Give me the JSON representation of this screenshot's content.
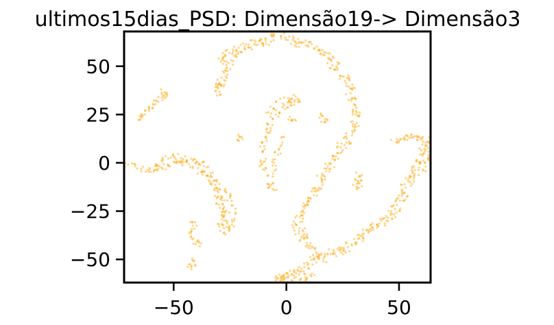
{
  "chart_data": {
    "type": "scatter",
    "title": "ultimos15dias_PSD: Dimensão19-> Dimensão3",
    "xlabel": "",
    "ylabel": "",
    "xlim": [
      -72,
      64
    ],
    "ylim": [
      -62,
      68
    ],
    "grid": false,
    "legend": "none",
    "x_ticks": [
      {
        "value": -50,
        "label": "−50"
      },
      {
        "value": 0,
        "label": "0"
      },
      {
        "value": 50,
        "label": "50"
      }
    ],
    "y_ticks": [
      {
        "value": 50,
        "label": "50"
      },
      {
        "value": 25,
        "label": "25"
      },
      {
        "value": 0,
        "label": "0"
      },
      {
        "value": -25,
        "label": "−25"
      },
      {
        "value": -50,
        "label": "−50"
      }
    ],
    "marker_color": "#FFA500",
    "series": [
      {
        "points": [
          [
            -71,
            -1
          ],
          [
            -68,
            -1
          ],
          [
            -65,
            -3
          ],
          [
            -62,
            -4
          ],
          [
            -60,
            -4
          ],
          [
            -57,
            -3
          ],
          [
            -55,
            -2
          ],
          [
            -52,
            -1
          ],
          [
            -50,
            0
          ],
          [
            -48,
            1
          ],
          [
            -45,
            0
          ],
          [
            -43,
            -1
          ],
          [
            -40,
            -2
          ],
          [
            -38,
            -4
          ],
          [
            -36,
            -6
          ],
          [
            -34,
            -8
          ],
          [
            -33,
            -10
          ],
          [
            -32,
            -12
          ],
          [
            -31,
            -15
          ],
          [
            -30,
            -18
          ],
          [
            -29,
            -21
          ],
          [
            -28,
            -24
          ],
          [
            -28,
            -27
          ],
          [
            -27,
            -30
          ],
          [
            -27,
            -33
          ],
          [
            -59,
            -2
          ],
          [
            -56,
            0
          ],
          [
            -54,
            2
          ],
          [
            -51,
            3
          ],
          [
            -49,
            3
          ],
          [
            -46,
            2
          ],
          [
            -44,
            2
          ],
          [
            -42,
            1
          ],
          [
            -40,
            0
          ],
          [
            -38,
            -1
          ],
          [
            -36,
            -3
          ],
          [
            -34,
            -6
          ],
          [
            -32,
            -9
          ],
          [
            -31,
            -12
          ],
          [
            -30,
            -16
          ],
          [
            -30,
            -20
          ],
          [
            -29,
            -24
          ],
          [
            -29,
            -28
          ],
          [
            -29,
            -32
          ],
          [
            -28,
            -14
          ],
          [
            -26,
            -17
          ],
          [
            -25,
            -21
          ],
          [
            -24,
            -25
          ],
          [
            -23,
            -29
          ],
          [
            -24,
            -33
          ],
          [
            -26,
            -35
          ],
          [
            -28,
            -36
          ],
          [
            -53,
            36
          ],
          [
            -54,
            37
          ],
          [
            -55,
            35
          ],
          [
            -56,
            33
          ],
          [
            -58,
            31
          ],
          [
            -60,
            29
          ],
          [
            -62,
            28
          ],
          [
            -63,
            26
          ],
          [
            -64,
            24
          ],
          [
            -65,
            23
          ],
          [
            -42,
            -31
          ],
          [
            -41,
            -33
          ],
          [
            -42,
            -35
          ],
          [
            -41,
            -39
          ],
          [
            -40,
            -41
          ],
          [
            -39,
            -42
          ],
          [
            -42,
            -52
          ],
          [
            -43,
            -54
          ],
          [
            -42,
            -51
          ],
          [
            -22,
            13
          ],
          [
            -21,
            13
          ],
          [
            -11,
            -1
          ],
          [
            -10,
            1
          ],
          [
            -9,
            -3
          ],
          [
            -31,
            40
          ],
          [
            -30,
            38
          ],
          [
            -30,
            36
          ],
          [
            -29,
            42
          ],
          [
            -28,
            44
          ],
          [
            -27,
            47
          ],
          [
            -27,
            50
          ],
          [
            -28,
            53
          ],
          [
            -29,
            55
          ],
          [
            -27,
            57
          ],
          [
            -25,
            58
          ],
          [
            -23,
            57
          ],
          [
            -21,
            56
          ],
          [
            -19,
            58
          ],
          [
            -17,
            60
          ],
          [
            -15,
            62
          ],
          [
            -12,
            63
          ],
          [
            -10,
            64
          ],
          [
            -7,
            65
          ],
          [
            -5,
            66
          ],
          [
            -2,
            66
          ],
          [
            1,
            65
          ],
          [
            4,
            64
          ],
          [
            7,
            63
          ],
          [
            10,
            62
          ],
          [
            13,
            60
          ],
          [
            16,
            58
          ],
          [
            18,
            56
          ],
          [
            20,
            54
          ],
          [
            22,
            51
          ],
          [
            23,
            48
          ],
          [
            25,
            45
          ],
          [
            27,
            43
          ],
          [
            28,
            41
          ],
          [
            28,
            37
          ],
          [
            29,
            33
          ],
          [
            30,
            30
          ],
          [
            31,
            27
          ],
          [
            31,
            24
          ],
          [
            30,
            21
          ],
          [
            29,
            18
          ],
          [
            -30,
            39
          ],
          [
            -29,
            41
          ],
          [
            -26,
            49
          ],
          [
            -25,
            52
          ],
          [
            -22,
            59
          ],
          [
            -19,
            61
          ],
          [
            -14,
            60
          ],
          [
            -11,
            61
          ],
          [
            -8,
            62
          ],
          [
            3,
            62
          ],
          [
            6,
            61
          ],
          [
            11,
            61
          ],
          [
            15,
            57
          ],
          [
            19,
            53
          ],
          [
            21,
            49
          ],
          [
            26,
            44
          ],
          [
            29,
            38
          ],
          [
            30,
            32
          ],
          [
            32,
            26
          ],
          [
            31,
            20
          ],
          [
            28,
            14
          ],
          [
            27,
            11
          ],
          [
            25,
            8
          ],
          [
            23,
            5
          ],
          [
            22,
            2
          ],
          [
            20,
            -1
          ],
          [
            19,
            -4
          ],
          [
            17,
            -7
          ],
          [
            16,
            -10
          ],
          [
            14,
            -13
          ],
          [
            12,
            -16
          ],
          [
            10,
            -19
          ],
          [
            9,
            -22
          ],
          [
            7,
            -25
          ],
          [
            6,
            -28
          ],
          [
            6,
            -31
          ],
          [
            7,
            -34
          ],
          [
            8,
            -37
          ],
          [
            9,
            -40
          ],
          [
            10,
            -43
          ],
          [
            12,
            -45
          ],
          [
            14,
            -48
          ],
          [
            13,
            -51
          ],
          [
            11,
            -54
          ],
          [
            8,
            -56
          ],
          [
            5,
            -57
          ],
          [
            2,
            -58
          ],
          [
            0,
            -59
          ],
          [
            -3,
            -59
          ],
          [
            26,
            12
          ],
          [
            24,
            9
          ],
          [
            21,
            4
          ],
          [
            18,
            -2
          ],
          [
            15,
            -8
          ],
          [
            13,
            -14
          ],
          [
            11,
            -18
          ],
          [
            8,
            -23
          ],
          [
            5,
            -27
          ],
          [
            4,
            -32
          ],
          [
            5,
            -36
          ],
          [
            7,
            -39
          ],
          [
            10,
            -42
          ],
          [
            12,
            -49
          ],
          [
            9,
            -53
          ],
          [
            6,
            -55
          ],
          [
            3,
            -57
          ],
          [
            -1,
            -58
          ],
          [
            13,
            -49
          ],
          [
            16,
            -47
          ],
          [
            19,
            -46
          ],
          [
            22,
            -45
          ],
          [
            25,
            -44
          ],
          [
            28,
            -42
          ],
          [
            31,
            -40
          ],
          [
            33,
            -38
          ],
          [
            35,
            -36
          ],
          [
            37,
            -34
          ],
          [
            39,
            -32
          ],
          [
            42,
            -30
          ],
          [
            44,
            -28
          ],
          [
            46,
            -26
          ],
          [
            47,
            -24
          ],
          [
            48,
            -21
          ],
          [
            50,
            -18
          ],
          [
            51,
            -15
          ],
          [
            52,
            -12
          ],
          [
            54,
            -9
          ],
          [
            55,
            -6
          ],
          [
            57,
            -3
          ],
          [
            58,
            0
          ],
          [
            59,
            3
          ],
          [
            60,
            6
          ],
          [
            61,
            9
          ],
          [
            62,
            11
          ],
          [
            63,
            12
          ],
          [
            60,
            13
          ],
          [
            57,
            13
          ],
          [
            54,
            12
          ],
          [
            51,
            11
          ],
          [
            48,
            11
          ],
          [
            52,
            13
          ],
          [
            55,
            14
          ],
          [
            58,
            13
          ],
          [
            17,
            -50
          ],
          [
            21,
            -48
          ],
          [
            24,
            -46
          ],
          [
            27,
            -45
          ],
          [
            30,
            -43
          ],
          [
            34,
            -39
          ],
          [
            38,
            -35
          ],
          [
            41,
            -33
          ],
          [
            44,
            -31
          ],
          [
            47,
            -28
          ],
          [
            49,
            -25
          ],
          [
            52,
            -20
          ],
          [
            53,
            -16
          ],
          [
            55,
            -11
          ],
          [
            56,
            -8
          ],
          [
            58,
            -5
          ],
          [
            60,
            -1
          ],
          [
            62,
            4
          ],
          [
            63,
            7
          ],
          [
            62,
            0
          ],
          [
            61,
            -3
          ],
          [
            64,
            1
          ],
          [
            -10,
            6
          ],
          [
            -11,
            9
          ],
          [
            -10,
            12
          ],
          [
            -9,
            15
          ],
          [
            -8,
            18
          ],
          [
            -7,
            21
          ],
          [
            -5,
            24
          ],
          [
            -3,
            27
          ],
          [
            -1,
            29
          ],
          [
            1,
            30
          ],
          [
            3,
            31
          ],
          [
            4,
            33
          ],
          [
            5,
            33
          ],
          [
            3,
            34
          ],
          [
            0,
            33
          ],
          [
            -3,
            32
          ],
          [
            -6,
            28
          ],
          [
            -8,
            25
          ],
          [
            -2,
            12
          ],
          [
            -3,
            8
          ],
          [
            -4,
            5
          ],
          [
            -5,
            1
          ],
          [
            -6,
            -3
          ],
          [
            -7,
            -7
          ],
          [
            -7,
            -10
          ],
          [
            -7,
            -12
          ],
          [
            -6,
            -13
          ],
          [
            2,
            22
          ],
          [
            3,
            23
          ],
          [
            16,
            25
          ],
          [
            17,
            23
          ],
          [
            17,
            21
          ],
          [
            32,
            -6
          ],
          [
            32,
            -8
          ],
          [
            33,
            -10
          ],
          [
            32,
            -12
          ],
          [
            31,
            -13
          ],
          [
            -1,
            -60
          ],
          [
            2,
            -61
          ],
          [
            5,
            -60
          ],
          [
            8,
            -61
          ],
          [
            10,
            -60
          ],
          [
            12,
            -59
          ],
          [
            -4,
            -60
          ],
          [
            -2,
            -59
          ]
        ]
      }
    ]
  }
}
